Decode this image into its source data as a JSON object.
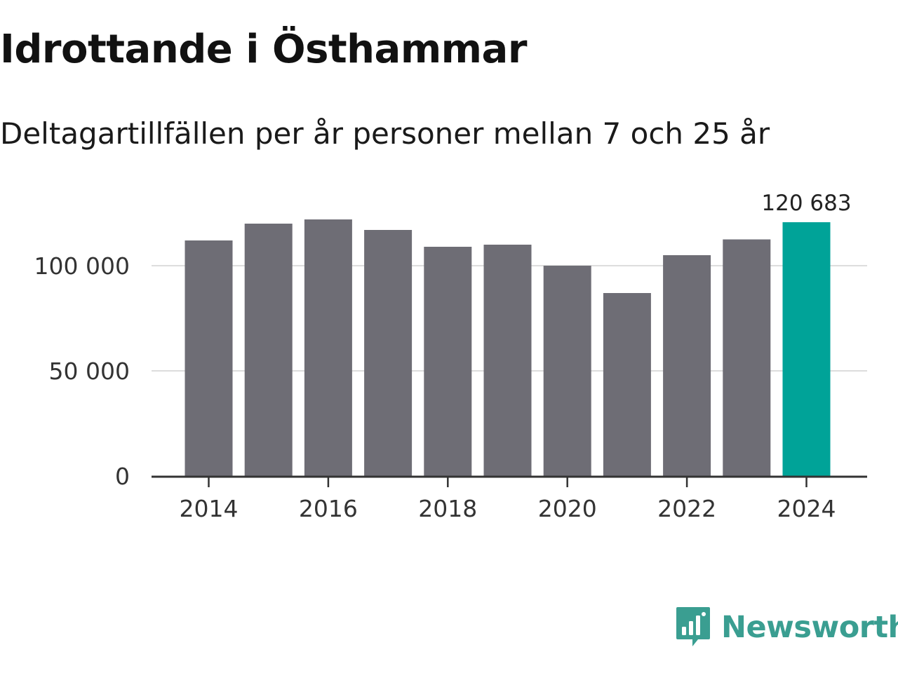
{
  "title": "Idrottande i Östhammar",
  "subtitle": "Deltagartillfällen per år personer mellan 7 och 25 år",
  "brand": {
    "name": "Newsworthy",
    "color": "#3a9e91",
    "icon": "bar-chart-speech-bubble-icon"
  },
  "chart_data": {
    "type": "bar",
    "title": "Idrottande i Östhammar",
    "subtitle": "Deltagartillfällen per år personer mellan 7 och 25 år",
    "xlabel": "",
    "ylabel": "",
    "categories": [
      2014,
      2015,
      2016,
      2017,
      2018,
      2019,
      2020,
      2021,
      2022,
      2023,
      2024
    ],
    "values": [
      112000,
      120000,
      122000,
      117000,
      109000,
      110000,
      100000,
      87000,
      105000,
      112500,
      120683
    ],
    "ylim": [
      0,
      130000
    ],
    "yticks": [
      0,
      50000,
      100000
    ],
    "ytick_labels": [
      "0",
      "50 000",
      "100 000"
    ],
    "xticks": [
      2014,
      2016,
      2018,
      2020,
      2022,
      2024
    ],
    "xtick_labels": [
      "2014",
      "2016",
      "2018",
      "2020",
      "2022",
      "2024"
    ],
    "grid": true,
    "bar_color": "#6e6d75",
    "highlight_color": "#00a398",
    "highlight_index": 10,
    "annotations": [
      {
        "category": 2024,
        "text": "120 683"
      }
    ]
  }
}
